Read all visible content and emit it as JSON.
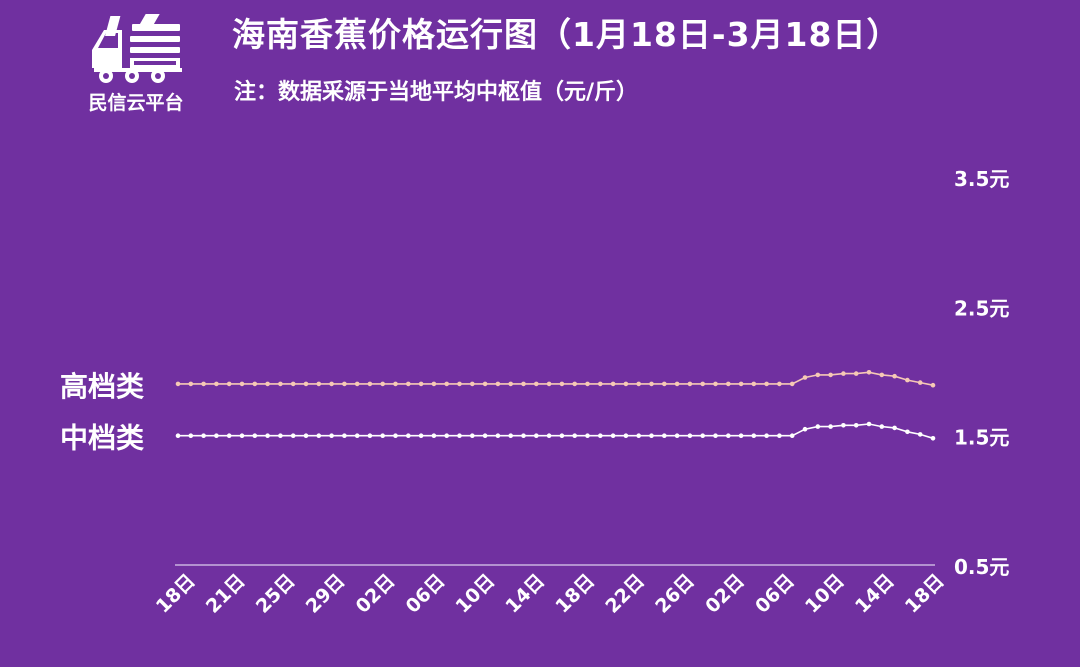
{
  "logo": {
    "text": "民信云平台",
    "icon": "delivery-truck-icon"
  },
  "header": {
    "title": "海南香蕉价格运行图（1月18日-3月18日）",
    "note": "注：数据采源于当地平均中枢值（元/斤）"
  },
  "colors": {
    "background": "#7030a0",
    "high_series": "#f6c9b5",
    "mid_series": "#ffffff",
    "axis_line": "#c9b3e0"
  },
  "chart_data": {
    "type": "line",
    "x_tick_labels": [
      "18日",
      "21日",
      "25日",
      "29日",
      "02日",
      "06日",
      "10日",
      "14日",
      "18日",
      "22日",
      "26日",
      "02日",
      "06日",
      "10日",
      "14日",
      "18日"
    ],
    "y_tick_labels": [
      "3.5元",
      "2.5元",
      "1.5元",
      "0.5元"
    ],
    "y_ticks": [
      3.5,
      2.5,
      1.5,
      0.5
    ],
    "ylim": [
      0.5,
      3.5
    ],
    "grid": false,
    "legend": "left, inline labels",
    "series": [
      {
        "name": "高档类",
        "values": [
          1.9,
          1.9,
          1.9,
          1.9,
          1.9,
          1.9,
          1.9,
          1.9,
          1.9,
          1.9,
          1.9,
          1.9,
          1.9,
          1.9,
          1.9,
          1.9,
          1.9,
          1.9,
          1.9,
          1.9,
          1.9,
          1.9,
          1.9,
          1.9,
          1.9,
          1.9,
          1.9,
          1.9,
          1.9,
          1.9,
          1.9,
          1.9,
          1.9,
          1.9,
          1.9,
          1.9,
          1.9,
          1.9,
          1.9,
          1.9,
          1.9,
          1.9,
          1.9,
          1.9,
          1.9,
          1.9,
          1.9,
          1.9,
          1.9,
          1.95,
          1.97,
          1.97,
          1.98,
          1.98,
          1.99,
          1.97,
          1.96,
          1.93,
          1.91,
          1.89
        ]
      },
      {
        "name": "中档类",
        "values": [
          1.5,
          1.5,
          1.5,
          1.5,
          1.5,
          1.5,
          1.5,
          1.5,
          1.5,
          1.5,
          1.5,
          1.5,
          1.5,
          1.5,
          1.5,
          1.5,
          1.5,
          1.5,
          1.5,
          1.5,
          1.5,
          1.5,
          1.5,
          1.5,
          1.5,
          1.5,
          1.5,
          1.5,
          1.5,
          1.5,
          1.5,
          1.5,
          1.5,
          1.5,
          1.5,
          1.5,
          1.5,
          1.5,
          1.5,
          1.5,
          1.5,
          1.5,
          1.5,
          1.5,
          1.5,
          1.5,
          1.5,
          1.5,
          1.5,
          1.55,
          1.57,
          1.57,
          1.58,
          1.58,
          1.59,
          1.57,
          1.56,
          1.53,
          1.51,
          1.48
        ]
      }
    ]
  }
}
